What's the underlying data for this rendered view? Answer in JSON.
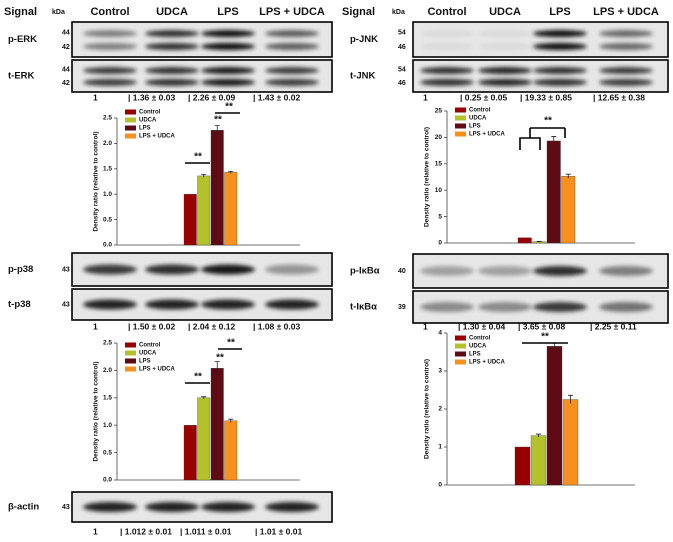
{
  "headers": [
    {
      "signal": "Signal",
      "kda": "kDa",
      "columns": [
        "Control",
        "UDCA",
        "LPS",
        "LPS + UDCA"
      ]
    },
    {
      "signal": "Signal",
      "kda": "kDa",
      "columns": [
        "Control",
        "UDCA",
        "LPS",
        "LPS + UDCA"
      ]
    }
  ],
  "blots": [
    {
      "rows": [
        {
          "name": "p-ERK",
          "kda": [
            "44",
            "42"
          ]
        },
        {
          "name": "t-ERK",
          "kda": [
            "44",
            "42"
          ]
        }
      ],
      "quant": [
        "1",
        "| 1.36 ± 0.03",
        "| 2.26 ± 0.09",
        "| 1.43 ± 0.02"
      ]
    },
    {
      "rows": [
        {
          "name": "p-JNK",
          "kda": [
            "54",
            "46"
          ]
        },
        {
          "name": "t-JNK",
          "kda": [
            "54",
            "46"
          ]
        }
      ],
      "quant": [
        "1",
        "| 0.25 ± 0.05",
        "| 19.33 ± 0.85",
        "| 12.65 ± 0.38"
      ]
    },
    {
      "rows": [
        {
          "name": "p-p38",
          "kda": [
            "43"
          ]
        },
        {
          "name": "t-p38",
          "kda": [
            "43"
          ]
        }
      ],
      "quant": [
        "1",
        "| 1.50 ± 0.02",
        "| 2.04 ± 0.12",
        "| 1.08 ± 0.03"
      ]
    },
    {
      "rows": [
        {
          "name": "p-IκBα",
          "kda": [
            "40"
          ]
        },
        {
          "name": "t-IκBα",
          "kda": [
            "39"
          ]
        }
      ],
      "quant": [
        "1",
        "| 1.30 ± 0.04",
        "| 3.65 ± 0.08",
        "| 2.25 ± 0.11"
      ]
    },
    {
      "rows": [
        {
          "name": "β-actin",
          "kda": [
            "43"
          ]
        }
      ],
      "quant": [
        "1",
        "| 1.012 ± 0.01",
        "| 1.011 ± 0.01",
        "| 1.01 ± 0.01"
      ]
    }
  ],
  "chart_data": [
    {
      "type": "bar",
      "y_label": "Density ratio (relative to control)",
      "categories": [
        null
      ],
      "series": [
        {
          "name": "Control",
          "color": "#990000",
          "values": [
            1
          ]
        },
        {
          "name": "UDCA",
          "color": "#b3c12b",
          "values": [
            1.36
          ],
          "errors": [
            0.03
          ]
        },
        {
          "name": "LPS",
          "color": "#5e0b16",
          "values": [
            2.26
          ],
          "errors": [
            0.09
          ]
        },
        {
          "name": "LPS + UDCA",
          "color": "#f7901e",
          "values": [
            1.43
          ],
          "errors": [
            0.02
          ]
        }
      ],
      "ylim": [
        0,
        2.5
      ],
      "yticks": [
        {
          "value": 0,
          "label": "0.0"
        },
        0.5,
        {
          "value": 1,
          "label": "1.0"
        },
        1.5,
        {
          "value": 2,
          "label": "2.0"
        },
        2.5
      ],
      "annotations": [
        "**",
        "**",
        "**"
      ]
    },
    {
      "type": "bar",
      "y_label": "Density ratio (relative to control)",
      "categories": [
        null
      ],
      "series": [
        {
          "name": "Control",
          "color": "#990000",
          "values": [
            1
          ]
        },
        {
          "name": "UDCA",
          "color": "#b3c12b",
          "values": [
            0.25
          ],
          "errors": [
            0.05
          ]
        },
        {
          "name": "LPS",
          "color": "#5e0b16",
          "values": [
            19.33
          ],
          "errors": [
            0.85
          ]
        },
        {
          "name": "LPS + UDCA",
          "color": "#f7901e",
          "values": [
            12.65
          ],
          "errors": [
            0.38
          ]
        }
      ],
      "ylim": [
        0,
        25
      ],
      "yticks": [
        0,
        5,
        10,
        15,
        20,
        25
      ],
      "annotations": [
        "**"
      ]
    },
    {
      "type": "bar",
      "y_label": "Density ratio (relative to control)",
      "categories": [
        null
      ],
      "series": [
        {
          "name": "Control",
          "color": "#990000",
          "values": [
            1
          ]
        },
        {
          "name": "UDCA",
          "color": "#b3c12b",
          "values": [
            1.5
          ],
          "errors": [
            0.02
          ]
        },
        {
          "name": "LPS",
          "color": "#5e0b16",
          "values": [
            2.04
          ],
          "errors": [
            0.12
          ]
        },
        {
          "name": "LPS + UDCA",
          "color": "#f7901e",
          "values": [
            1.08
          ],
          "errors": [
            0.03
          ]
        }
      ],
      "ylim": [
        0,
        2.5
      ],
      "yticks": [
        {
          "value": 0,
          "label": "0.0"
        },
        0.5,
        {
          "value": 1,
          "label": "1.0"
        },
        1.5,
        {
          "value": 2,
          "label": "2.0"
        },
        2.5
      ],
      "annotations": [
        "**",
        "**",
        "**"
      ]
    },
    {
      "type": "bar",
      "y_label": "Density ratio (relative to control)",
      "categories": [
        null
      ],
      "series": [
        {
          "name": "Control",
          "color": "#990000",
          "values": [
            1
          ]
        },
        {
          "name": "UDCA",
          "color": "#b3c12b",
          "values": [
            1.3
          ],
          "errors": [
            0.04
          ]
        },
        {
          "name": "LPS",
          "color": "#5e0b16",
          "values": [
            3.65
          ],
          "errors": [
            0.08
          ]
        },
        {
          "name": "LPS + UDCA",
          "color": "#f7901e",
          "values": [
            2.25
          ],
          "errors": [
            0.11
          ]
        }
      ],
      "ylim": [
        0,
        4
      ],
      "yticks": [
        0,
        1,
        2,
        3,
        4
      ],
      "annotations": [
        "**"
      ]
    }
  ]
}
